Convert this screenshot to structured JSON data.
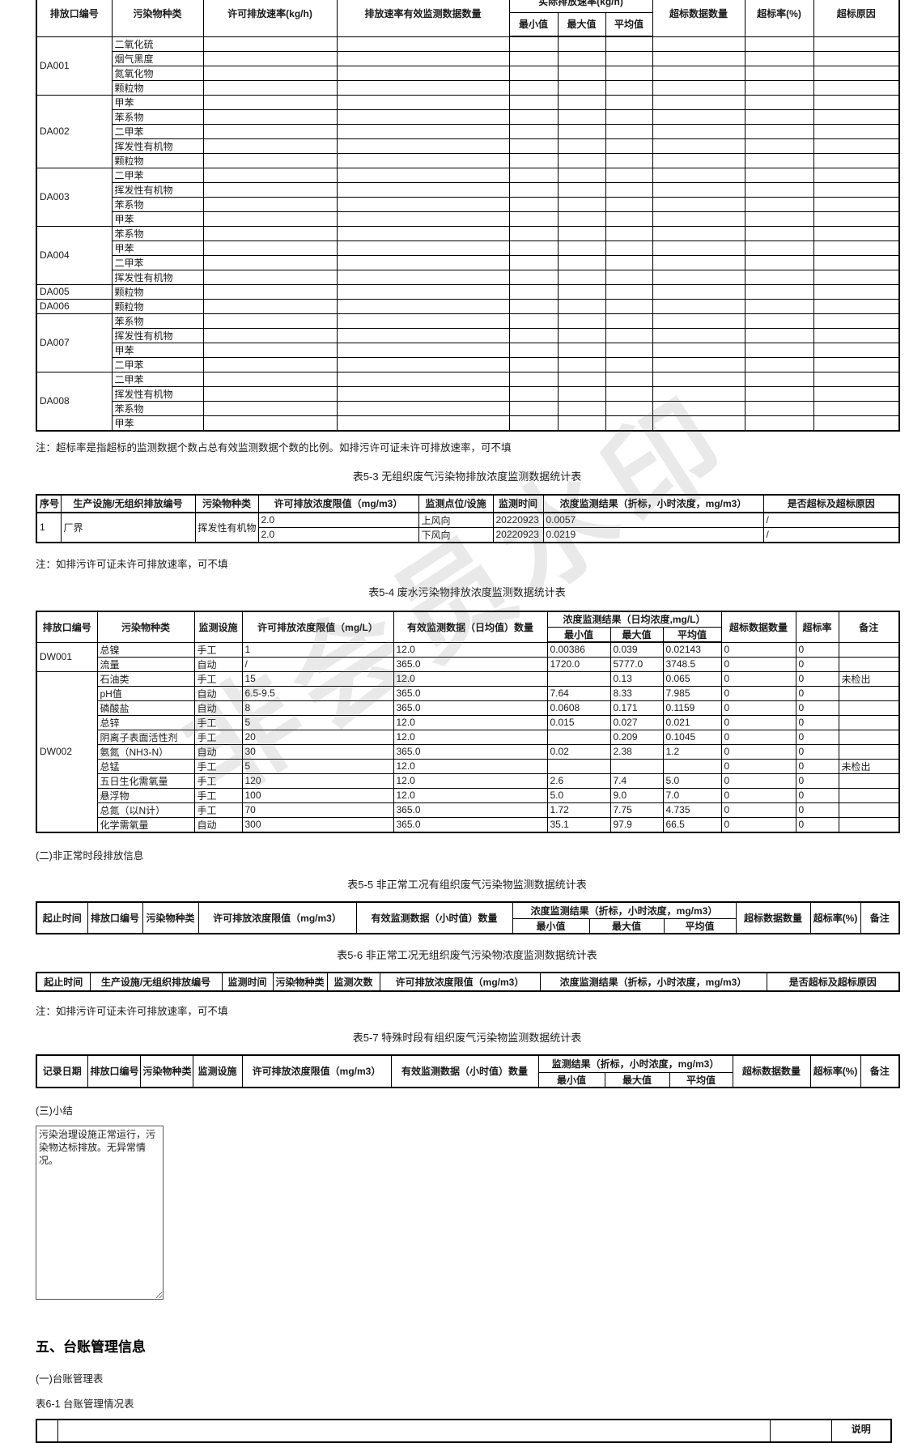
{
  "watermark": "非会员水印",
  "notes": {
    "note1": "注：超标率是指超标的监测数据个数占总有效监测数据个数的比例。如排污许可证未许可排放速率，可不填",
    "note2": "注：如排污许可证未许可排放速率，可不填",
    "note3": "注：如排污许可证未许可排放速率，可不填"
  },
  "table51": {
    "headers": {
      "outlet": "排放口编号",
      "pollutant": "污染物种类",
      "permitted_rate": "许可排放速率(kg/h)",
      "valid_count": "排放速率有效监测数据数量",
      "actual_rate": "实际排放速率(kg/h)",
      "min": "最小值",
      "max": "最大值",
      "avg": "平均值",
      "exceed_count": "超标数据数量",
      "exceed_rate": "超标率(%)",
      "exceed_reason": "超标原因"
    },
    "groups": [
      {
        "outlet": "DA001",
        "pollutants": [
          "二氧化硫",
          "烟气黑度",
          "氮氧化物",
          "颗粒物"
        ]
      },
      {
        "outlet": "DA002",
        "pollutants": [
          "甲苯",
          "苯系物",
          "二甲苯",
          "挥发性有机物",
          "颗粒物"
        ]
      },
      {
        "outlet": "DA003",
        "pollutants": [
          "二甲苯",
          "挥发性有机物",
          "苯系物",
          "甲苯"
        ]
      },
      {
        "outlet": "DA004",
        "pollutants": [
          "苯系物",
          "甲苯",
          "二甲苯",
          "挥发性有机物"
        ]
      },
      {
        "outlet": "DA005",
        "pollutants": [
          "颗粒物"
        ]
      },
      {
        "outlet": "DA006",
        "pollutants": [
          "颗粒物"
        ]
      },
      {
        "outlet": "DA007",
        "pollutants": [
          "苯系物",
          "挥发性有机物",
          "甲苯",
          "二甲苯"
        ]
      },
      {
        "outlet": "DA008",
        "pollutants": [
          "二甲苯",
          "挥发性有机物",
          "苯系物",
          "甲苯"
        ]
      }
    ]
  },
  "table53": {
    "title": "表5-3 无组织废气污染物排放浓度监测数据统计表",
    "headers": {
      "seq": "序号",
      "facility": "生产设施/无组织排放编号",
      "pollutant": "污染物种类",
      "limit": "许可排放浓度限值（mg/m3）",
      "point": "监测点位/设施",
      "time": "监测时间",
      "result": "浓度监测结果（折标，小时浓度，mg/m3）",
      "exceed": "是否超标及超标原因"
    },
    "row": {
      "seq": "1",
      "facility": "厂界",
      "pollutant": "挥发性有机物",
      "subrows": [
        {
          "limit": "2.0",
          "point": "上风向",
          "time": "20220923",
          "result": "0.0057",
          "exceed": "/"
        },
        {
          "limit": "2.0",
          "point": "下风向",
          "time": "20220923",
          "result": "0.0219",
          "exceed": "/"
        }
      ]
    }
  },
  "table54": {
    "title": "表5-4 废水污染物排放浓度监测数据统计表",
    "headers": {
      "outlet": "排放口编号",
      "pollutant": "污染物种类",
      "facility": "监测设施",
      "limit": "许可排放浓度限值（mg/L）",
      "count": "有效监测数据（日均值）数量",
      "result": "浓度监测结果（日均浓度,mg/L）",
      "min": "最小值",
      "max": "最大值",
      "avg": "平均值",
      "exceed_count": "超标数据数量",
      "exceed_rate": "超标率",
      "remark": "备注"
    },
    "groups": [
      {
        "outlet": "DW001",
        "rows": [
          {
            "pollutant": "总镍",
            "facility": "手工",
            "limit": "1",
            "count": "12.0",
            "min": "0.00386",
            "max": "0.039",
            "avg": "0.02143",
            "exceed_count": "0",
            "exceed_rate": "0",
            "remark": ""
          },
          {
            "pollutant": "流量",
            "facility": "自动",
            "limit": "/",
            "count": "365.0",
            "min": "1720.0",
            "max": "5777.0",
            "avg": "3748.5",
            "exceed_count": "0",
            "exceed_rate": "0",
            "remark": ""
          }
        ]
      },
      {
        "outlet": "DW002",
        "rows": [
          {
            "pollutant": "石油类",
            "facility": "手工",
            "limit": "15",
            "count": "12.0",
            "min": "",
            "max": "0.13",
            "avg": "0.065",
            "exceed_count": "0",
            "exceed_rate": "0",
            "remark": "未检出"
          },
          {
            "pollutant": "pH值",
            "facility": "自动",
            "limit": "6.5-9.5",
            "count": "365.0",
            "min": "7.64",
            "max": "8.33",
            "avg": "7.985",
            "exceed_count": "0",
            "exceed_rate": "0",
            "remark": ""
          },
          {
            "pollutant": "磷酸盐",
            "facility": "自动",
            "limit": "8",
            "count": "365.0",
            "min": "0.0608",
            "max": "0.171",
            "avg": "0.1159",
            "exceed_count": "0",
            "exceed_rate": "0",
            "remark": ""
          },
          {
            "pollutant": "总锌",
            "facility": "手工",
            "limit": "5",
            "count": "12.0",
            "min": "0.015",
            "max": "0.027",
            "avg": "0.021",
            "exceed_count": "0",
            "exceed_rate": "0",
            "remark": ""
          },
          {
            "pollutant": "阴离子表面活性剂",
            "facility": "手工",
            "limit": "20",
            "count": "12.0",
            "min": "",
            "max": "0.209",
            "avg": "0.1045",
            "exceed_count": "0",
            "exceed_rate": "0",
            "remark": ""
          },
          {
            "pollutant": "氨氮（NH3-N）",
            "facility": "自动",
            "limit": "30",
            "count": "365.0",
            "min": "0.02",
            "max": "2.38",
            "avg": "1.2",
            "exceed_count": "0",
            "exceed_rate": "0",
            "remark": ""
          },
          {
            "pollutant": "总锰",
            "facility": "手工",
            "limit": "5",
            "count": "12.0",
            "min": "",
            "max": "",
            "avg": "",
            "exceed_count": "0",
            "exceed_rate": "0",
            "remark": "未检出"
          },
          {
            "pollutant": "五日生化需氧量",
            "facility": "手工",
            "limit": "120",
            "count": "12.0",
            "min": "2.6",
            "max": "7.4",
            "avg": "5.0",
            "exceed_count": "0",
            "exceed_rate": "0",
            "remark": ""
          },
          {
            "pollutant": "悬浮物",
            "facility": "手工",
            "limit": "100",
            "count": "12.0",
            "min": "5.0",
            "max": "9.0",
            "avg": "7.0",
            "exceed_count": "0",
            "exceed_rate": "0",
            "remark": ""
          },
          {
            "pollutant": "总氮（以N计）",
            "facility": "手工",
            "limit": "70",
            "count": "365.0",
            "min": "1.72",
            "max": "7.75",
            "avg": "4.735",
            "exceed_count": "0",
            "exceed_rate": "0",
            "remark": ""
          },
          {
            "pollutant": "化学需氧量",
            "facility": "自动",
            "limit": "300",
            "count": "365.0",
            "min": "35.1",
            "max": "97.9",
            "avg": "66.5",
            "exceed_count": "0",
            "exceed_rate": "0",
            "remark": ""
          }
        ]
      }
    ]
  },
  "section2": "(二)非正常时段排放信息",
  "table55": {
    "title": "表5-5 非正常工况有组织废气污染物监测数据统计表",
    "headers": {
      "period": "起止时间",
      "outlet": "排放口编号",
      "pollutant": "污染物种类",
      "limit": "许可排放浓度限值（mg/m3）",
      "count": "有效监测数据（小时值）数量",
      "result": "浓度监测结果（折标，小时浓度，mg/m3）",
      "min": "最小值",
      "max": "最大值",
      "avg": "平均值",
      "exceed_count": "超标数据数量",
      "exceed_rate": "超标率(%)",
      "remark": "备注"
    }
  },
  "table56": {
    "title": "表5-6 非正常工况无组织废气污染物浓度监测数据统计表",
    "headers": {
      "period": "起止时间",
      "facility": "生产设施/无组织排放编号",
      "time": "监测时间",
      "pollutant": "污染物种类",
      "times": "监测次数",
      "limit": "许可排放浓度限值（mg/m3）",
      "result": "浓度监测结果（折标，小时浓度，mg/m3）",
      "exceed": "是否超标及超标原因"
    }
  },
  "table57": {
    "title": "表5-7 特殊时段有组织废气污染物监测数据统计表",
    "headers": {
      "date": "记录日期",
      "outlet": "排放口编号",
      "pollutant": "污染物种类",
      "facility": "监测设施",
      "limit": "许可排放浓度限值（mg/m3）",
      "count": "有效监测数据（小时值）数量",
      "result": "监测结果（折标，小时浓度，mg/m3）",
      "min": "最小值",
      "max": "最大值",
      "avg": "平均值",
      "exceed_count": "超标数据数量",
      "exceed_rate": "超标率(%)",
      "remark": "备注"
    }
  },
  "section3": "(三)小结",
  "summary_text": "污染治理设施正常运行，污染物达标排放。无异常情况。",
  "section5": "五、台账管理信息",
  "section5_1": "(一)台账管理表",
  "table61": {
    "caption": "表6-1 台账管理情况表",
    "headers": {
      "col1": "",
      "col2": "",
      "col3": "",
      "note": "说明"
    }
  }
}
